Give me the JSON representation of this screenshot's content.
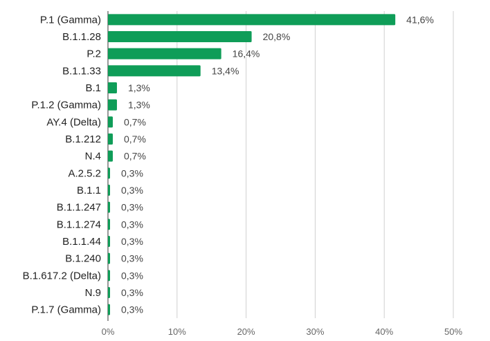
{
  "chart_data": {
    "type": "bar",
    "orientation": "horizontal",
    "categories": [
      "P.1 (Gamma)",
      "B.1.1.28",
      "P.2",
      "B.1.1.33",
      "B.1",
      "P.1.2 (Gamma)",
      "AY.4 (Delta)",
      "B.1.212",
      "N.4",
      "A.2.5.2",
      "B.1.1",
      "B.1.1.247",
      "B.1.1.274",
      "B.1.1.44",
      "B.1.240",
      "B.1.617.2 (Delta)",
      "N.9",
      "P.1.7 (Gamma)"
    ],
    "values": [
      41.6,
      20.8,
      16.4,
      13.4,
      1.3,
      1.3,
      0.7,
      0.7,
      0.7,
      0.3,
      0.3,
      0.3,
      0.3,
      0.3,
      0.3,
      0.3,
      0.3,
      0.3
    ],
    "value_labels": [
      "41,6%",
      "20,8%",
      "16,4%",
      "13,4%",
      "1,3%",
      "1,3%",
      "0,7%",
      "0,7%",
      "0,7%",
      "0,3%",
      "0,3%",
      "0,3%",
      "0,3%",
      "0,3%",
      "0,3%",
      "0,3%",
      "0,3%",
      "0,3%"
    ],
    "xlim": [
      0,
      50
    ],
    "x_ticks": [
      0,
      10,
      20,
      30,
      40,
      50
    ],
    "x_tick_labels": [
      "0%",
      "10%",
      "20%",
      "30%",
      "40%",
      "50%"
    ],
    "grid": true,
    "legend": "none",
    "bar_color": "#0f9d58"
  }
}
